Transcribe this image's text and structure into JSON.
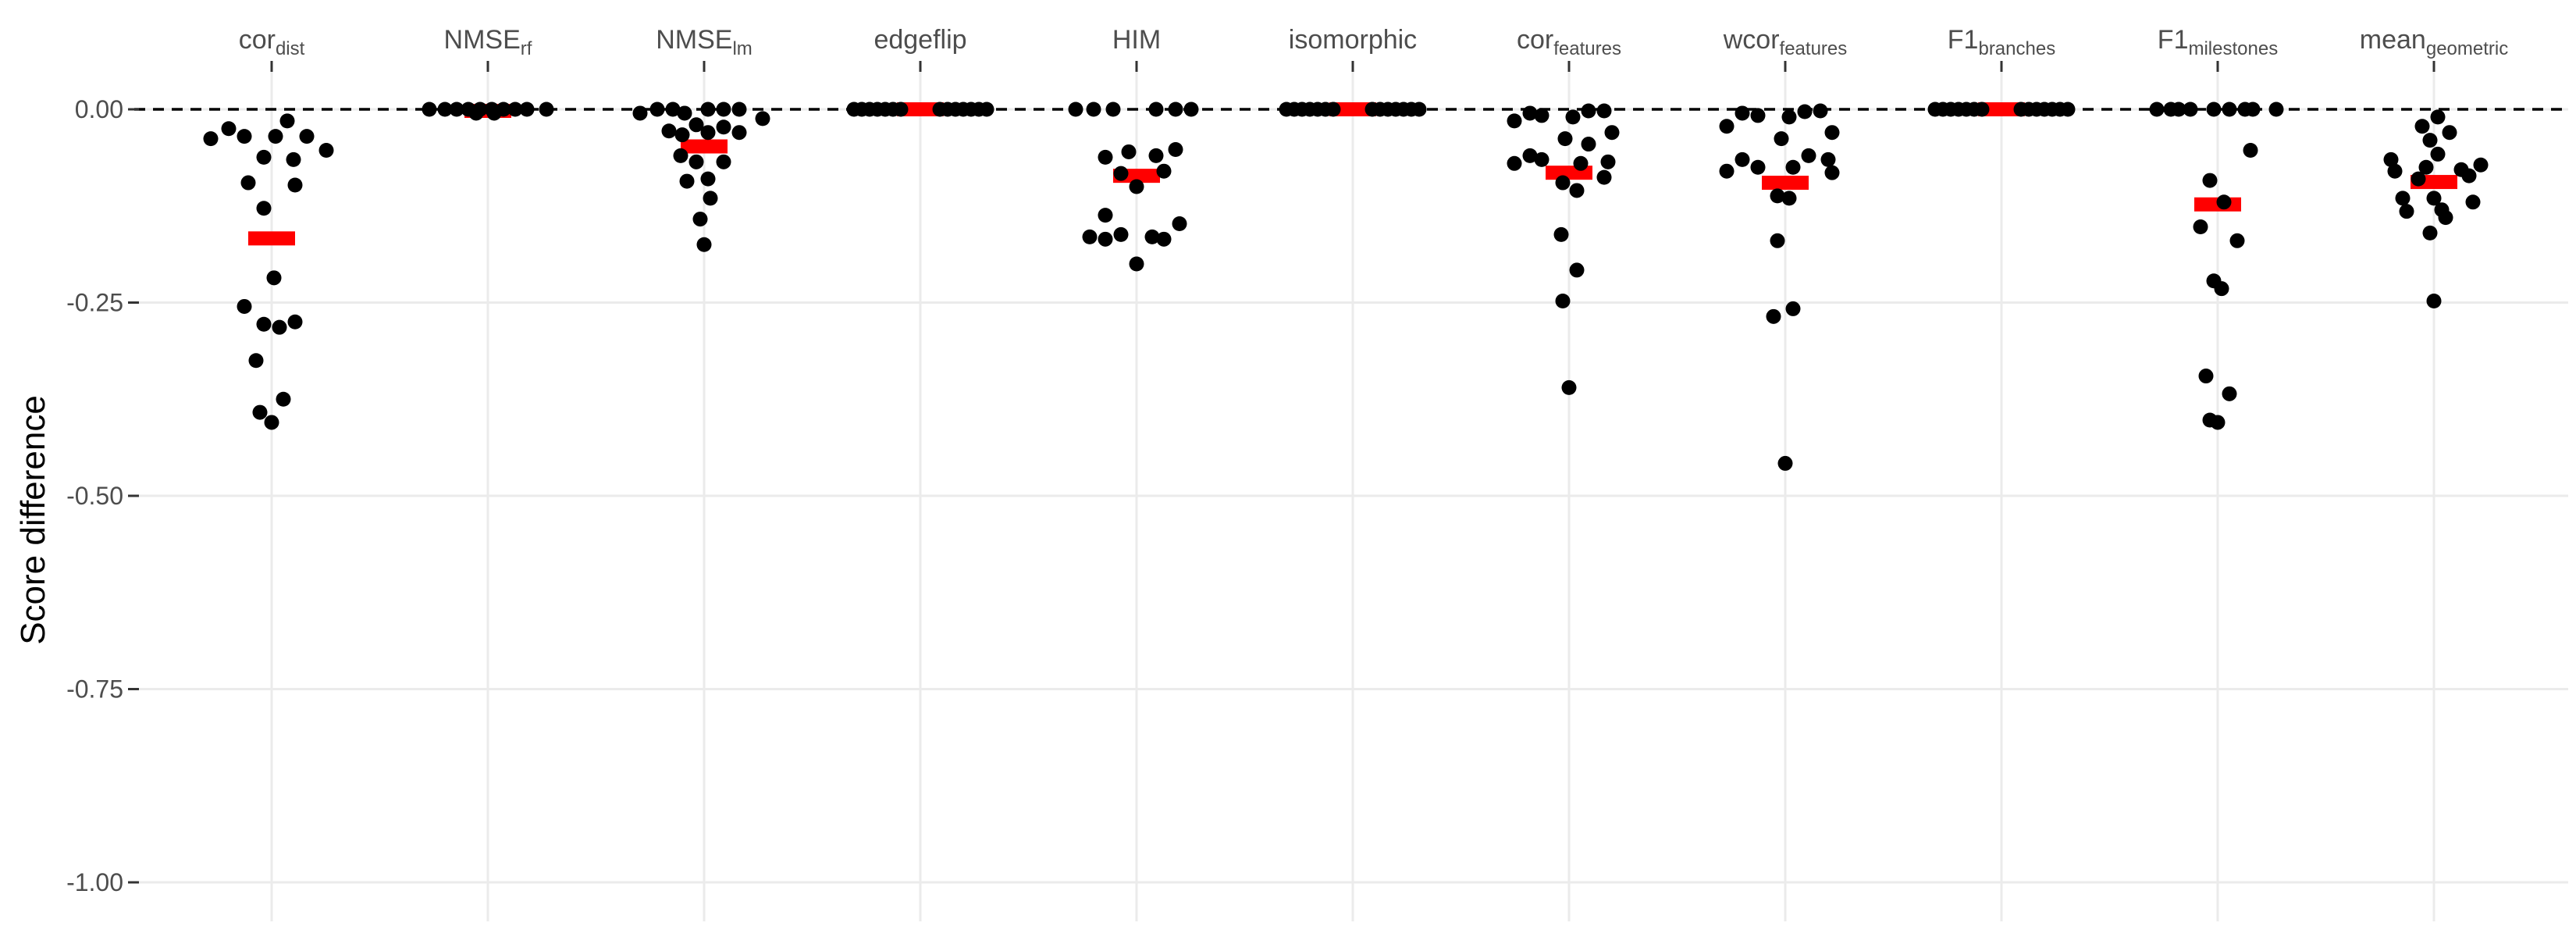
{
  "chart_data": {
    "type": "scatter",
    "title": "",
    "xlabel": "",
    "ylabel": "Score difference",
    "ylim": [
      -1.0,
      0.0
    ],
    "yticks": [
      {
        "value": 0,
        "label": "0.00"
      },
      {
        "value": -0.25,
        "label": "-0.25"
      },
      {
        "value": -0.5,
        "label": "-0.50"
      },
      {
        "value": -0.75,
        "label": "-0.75"
      },
      {
        "value": -1.0,
        "label": "-1.00"
      }
    ],
    "reference_line": {
      "y": 0,
      "style": "dashed"
    },
    "grid": true,
    "legend": "none",
    "colors": {
      "points": "#000000",
      "mean_marker": "#ff0000",
      "grid": "#ebebeb",
      "reference_line": "#000000"
    },
    "categories": [
      {
        "base": "cor",
        "sub": "dist"
      },
      {
        "base": "NMSE",
        "sub": "rf"
      },
      {
        "base": "NMSE",
        "sub": "lm"
      },
      {
        "base": "edgeflip",
        "sub": ""
      },
      {
        "base": "HIM",
        "sub": ""
      },
      {
        "base": "isomorphic",
        "sub": ""
      },
      {
        "base": "cor",
        "sub": "features"
      },
      {
        "base": "wcor",
        "sub": "features"
      },
      {
        "base": "F1",
        "sub": "branches"
      },
      {
        "base": "F1",
        "sub": "milestones"
      },
      {
        "base": "mean",
        "sub": "geometric"
      }
    ],
    "means": [
      -0.167,
      -0.002,
      -0.048,
      0.0,
      -0.086,
      0.0,
      -0.082,
      -0.095,
      0.0,
      -0.123,
      -0.094
    ],
    "series": [
      {
        "points": [
          [
            -0.78,
            -0.038
          ],
          [
            -0.55,
            -0.025
          ],
          [
            -0.35,
            -0.035
          ],
          [
            -0.3,
            -0.095
          ],
          [
            -0.1,
            -0.062
          ],
          [
            0.05,
            -0.035
          ],
          [
            0.2,
            -0.015
          ],
          [
            0.28,
            -0.065
          ],
          [
            0.45,
            -0.035
          ],
          [
            0.7,
            -0.053
          ],
          [
            0.3,
            -0.098
          ],
          [
            -0.1,
            -0.128
          ],
          [
            -0.35,
            -0.255
          ],
          [
            0.03,
            -0.218
          ],
          [
            -0.1,
            -0.278
          ],
          [
            0.1,
            -0.282
          ],
          [
            0.3,
            -0.275
          ],
          [
            -0.2,
            -0.325
          ],
          [
            -0.15,
            -0.392
          ],
          [
            0.0,
            -0.405
          ],
          [
            0.15,
            -0.375
          ]
        ]
      },
      {
        "points": [
          [
            -0.75,
            0
          ],
          [
            -0.55,
            0
          ],
          [
            -0.4,
            0
          ],
          [
            -0.25,
            0
          ],
          [
            -0.1,
            0
          ],
          [
            0.05,
            0
          ],
          [
            0.2,
            0
          ],
          [
            0.35,
            0
          ],
          [
            0.5,
            0
          ],
          [
            0.75,
            0
          ],
          [
            -0.15,
            -0.005
          ],
          [
            0.08,
            -0.005
          ]
        ]
      },
      {
        "points": [
          [
            -0.82,
            -0.005
          ],
          [
            -0.6,
            0
          ],
          [
            -0.4,
            0
          ],
          [
            -0.25,
            -0.005
          ],
          [
            0.05,
            0
          ],
          [
            0.25,
            0
          ],
          [
            0.45,
            0
          ],
          [
            0.75,
            -0.012
          ],
          [
            -0.45,
            -0.028
          ],
          [
            -0.28,
            -0.033
          ],
          [
            -0.1,
            -0.02
          ],
          [
            0.05,
            -0.03
          ],
          [
            0.25,
            -0.023
          ],
          [
            0.45,
            -0.03
          ],
          [
            -0.3,
            -0.06
          ],
          [
            -0.1,
            -0.068
          ],
          [
            0.25,
            -0.068
          ],
          [
            -0.22,
            -0.093
          ],
          [
            0.05,
            -0.09
          ],
          [
            -0.05,
            -0.142
          ],
          [
            0.0,
            -0.175
          ],
          [
            0.08,
            -0.115
          ]
        ]
      },
      {
        "points": [
          [
            -0.85,
            0
          ],
          [
            -0.75,
            0
          ],
          [
            -0.65,
            0
          ],
          [
            -0.55,
            0
          ],
          [
            -0.45,
            0
          ],
          [
            -0.35,
            0
          ],
          [
            -0.25,
            0
          ],
          [
            0.25,
            0
          ],
          [
            0.35,
            0
          ],
          [
            0.45,
            0
          ],
          [
            0.55,
            0
          ],
          [
            0.65,
            0
          ],
          [
            0.75,
            0
          ],
          [
            0.85,
            0
          ]
        ]
      },
      {
        "points": [
          [
            -0.78,
            0
          ],
          [
            -0.55,
            0
          ],
          [
            -0.3,
            0
          ],
          [
            0.25,
            0
          ],
          [
            0.5,
            0
          ],
          [
            0.7,
            0
          ],
          [
            -0.4,
            -0.062
          ],
          [
            -0.1,
            -0.055
          ],
          [
            0.25,
            -0.06
          ],
          [
            0.5,
            -0.052
          ],
          [
            -0.2,
            -0.083
          ],
          [
            0.35,
            -0.08
          ],
          [
            0.0,
            -0.1
          ],
          [
            -0.4,
            -0.137
          ],
          [
            0.55,
            -0.148
          ],
          [
            -0.6,
            -0.165
          ],
          [
            -0.4,
            -0.168
          ],
          [
            -0.2,
            -0.162
          ],
          [
            0.2,
            -0.165
          ],
          [
            0.35,
            -0.168
          ],
          [
            0.0,
            -0.2
          ]
        ]
      },
      {
        "points": [
          [
            -0.85,
            0
          ],
          [
            -0.75,
            0
          ],
          [
            -0.65,
            0
          ],
          [
            -0.55,
            0
          ],
          [
            -0.45,
            0
          ],
          [
            -0.35,
            0
          ],
          [
            -0.25,
            0
          ],
          [
            0.25,
            0
          ],
          [
            0.35,
            0
          ],
          [
            0.45,
            0
          ],
          [
            0.55,
            0
          ],
          [
            0.65,
            0
          ],
          [
            0.75,
            0
          ],
          [
            0.85,
            0
          ]
        ]
      },
      {
        "points": [
          [
            -0.7,
            -0.015
          ],
          [
            -0.5,
            -0.005
          ],
          [
            -0.35,
            -0.008
          ],
          [
            0.05,
            -0.01
          ],
          [
            0.25,
            -0.002
          ],
          [
            0.45,
            -0.002
          ],
          [
            -0.05,
            -0.038
          ],
          [
            0.25,
            -0.045
          ],
          [
            0.55,
            -0.03
          ],
          [
            -0.5,
            -0.06
          ],
          [
            -0.35,
            -0.065
          ],
          [
            -0.7,
            -0.07
          ],
          [
            0.15,
            -0.07
          ],
          [
            0.5,
            -0.068
          ],
          [
            -0.08,
            -0.095
          ],
          [
            0.1,
            -0.105
          ],
          [
            0.45,
            -0.088
          ],
          [
            -0.1,
            -0.162
          ],
          [
            0.1,
            -0.208
          ],
          [
            -0.08,
            -0.248
          ],
          [
            0.0,
            -0.36
          ]
        ]
      },
      {
        "points": [
          [
            -0.75,
            -0.022
          ],
          [
            -0.55,
            -0.005
          ],
          [
            -0.35,
            -0.008
          ],
          [
            0.05,
            -0.01
          ],
          [
            0.25,
            -0.003
          ],
          [
            0.45,
            -0.002
          ],
          [
            -0.05,
            -0.038
          ],
          [
            0.3,
            -0.06
          ],
          [
            0.6,
            -0.03
          ],
          [
            -0.55,
            -0.065
          ],
          [
            -0.35,
            -0.075
          ],
          [
            -0.75,
            -0.08
          ],
          [
            0.1,
            -0.075
          ],
          [
            0.55,
            -0.065
          ],
          [
            -0.1,
            -0.112
          ],
          [
            0.05,
            -0.115
          ],
          [
            0.6,
            -0.082
          ],
          [
            -0.1,
            -0.17
          ],
          [
            0.1,
            -0.258
          ],
          [
            -0.15,
            -0.268
          ],
          [
            0.0,
            -0.458
          ]
        ]
      },
      {
        "points": [
          [
            -0.85,
            0
          ],
          [
            -0.75,
            0
          ],
          [
            -0.65,
            0
          ],
          [
            -0.55,
            0
          ],
          [
            -0.45,
            0
          ],
          [
            -0.35,
            0
          ],
          [
            -0.25,
            0
          ],
          [
            0.25,
            0
          ],
          [
            0.35,
            0
          ],
          [
            0.45,
            0
          ],
          [
            0.55,
            0
          ],
          [
            0.65,
            0
          ],
          [
            0.75,
            0
          ],
          [
            0.85,
            0
          ]
        ]
      },
      {
        "points": [
          [
            -0.78,
            0
          ],
          [
            -0.6,
            0
          ],
          [
            -0.5,
            0
          ],
          [
            -0.35,
            0
          ],
          [
            -0.05,
            0
          ],
          [
            0.15,
            0
          ],
          [
            0.35,
            0
          ],
          [
            0.45,
            0
          ],
          [
            0.75,
            0
          ],
          [
            -0.1,
            -0.092
          ],
          [
            0.08,
            -0.12
          ],
          [
            -0.22,
            -0.152
          ],
          [
            0.25,
            -0.17
          ],
          [
            0.42,
            -0.053
          ],
          [
            -0.05,
            -0.222
          ],
          [
            0.05,
            -0.232
          ],
          [
            -0.15,
            -0.345
          ],
          [
            -0.1,
            -0.402
          ],
          [
            0.0,
            -0.405
          ],
          [
            0.15,
            -0.368
          ]
        ]
      },
      {
        "points": [
          [
            -0.55,
            -0.065
          ],
          [
            -0.5,
            -0.08
          ],
          [
            -0.4,
            -0.115
          ],
          [
            -0.35,
            -0.132
          ],
          [
            -0.15,
            -0.022
          ],
          [
            -0.05,
            -0.04
          ],
          [
            0.05,
            -0.01
          ],
          [
            0.05,
            -0.058
          ],
          [
            0.2,
            -0.03
          ],
          [
            -0.2,
            -0.09
          ],
          [
            -0.1,
            -0.075
          ],
          [
            0.0,
            -0.115
          ],
          [
            0.1,
            -0.13
          ],
          [
            0.15,
            -0.14
          ],
          [
            0.35,
            -0.078
          ],
          [
            0.5,
            -0.12
          ],
          [
            0.6,
            -0.072
          ],
          [
            0.45,
            -0.086
          ],
          [
            -0.05,
            -0.16
          ],
          [
            0.0,
            -0.248
          ]
        ]
      }
    ]
  }
}
